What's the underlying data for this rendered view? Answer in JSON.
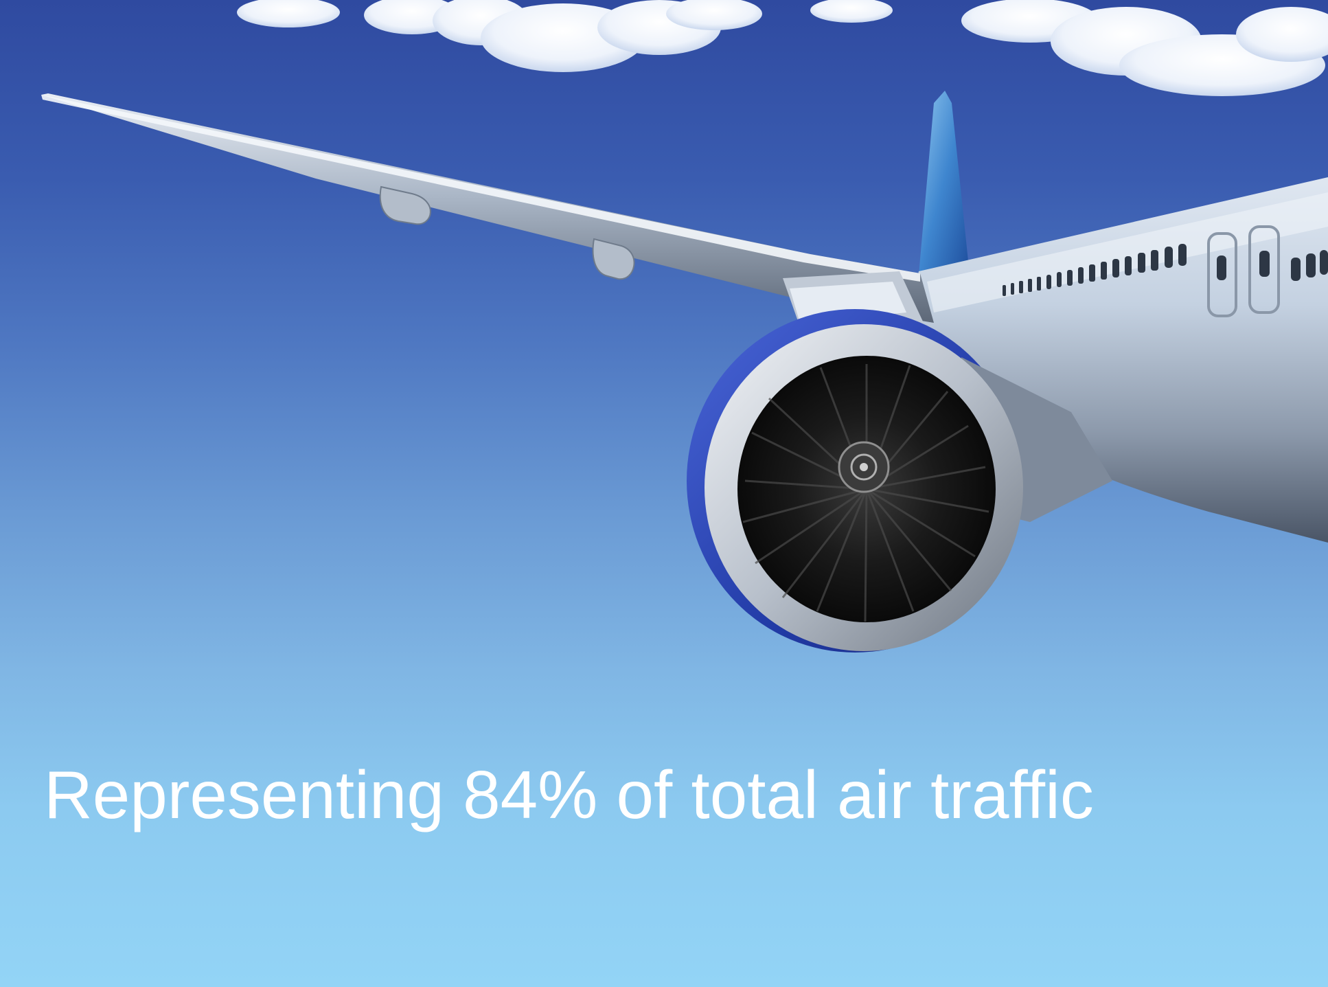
{
  "slide": {
    "caption": "Representing 84% of total air traffic"
  },
  "photo": {
    "subject": "airplane-wing-and-engine",
    "colors": {
      "sky_top": "#2f4aa0",
      "sky_bottom": "#93d4f6",
      "engine_cowl": "#2a3fa8",
      "fuselage": "#c9d6e6",
      "caption_text": "#ffffff"
    }
  }
}
